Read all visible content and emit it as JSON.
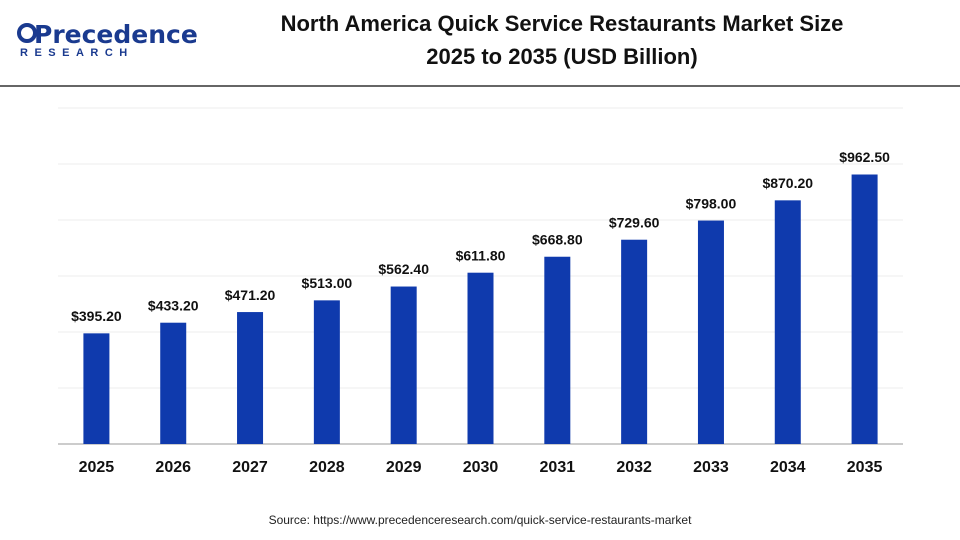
{
  "logo": {
    "name": "Precedence",
    "tagline": "RESEARCH"
  },
  "chart_data": {
    "type": "bar",
    "title": "North America Quick Service Restaurants Market Size",
    "subtitle": "2025 to 2035 (USD Billion)",
    "categories": [
      "2025",
      "2026",
      "2027",
      "2028",
      "2029",
      "2030",
      "2031",
      "2032",
      "2033",
      "2034",
      "2035"
    ],
    "values": [
      395.2,
      433.2,
      471.2,
      513.0,
      562.4,
      611.8,
      668.8,
      729.6,
      798.0,
      870.2,
      962.5
    ],
    "value_labels": [
      "$395.20",
      "$433.20",
      "$471.20",
      "$513.00",
      "$562.40",
      "$611.80",
      "$668.80",
      "$729.60",
      "$798.00",
      "$870.20",
      "$962.50"
    ],
    "color": "#0f3aad",
    "ylim": [
      0,
      1200
    ],
    "yticks": [
      0,
      200,
      400,
      600,
      800,
      1000,
      1200
    ],
    "grid": true,
    "source": "Source: https://www.precedenceresearch.com/quick-service-restaurants-market"
  }
}
